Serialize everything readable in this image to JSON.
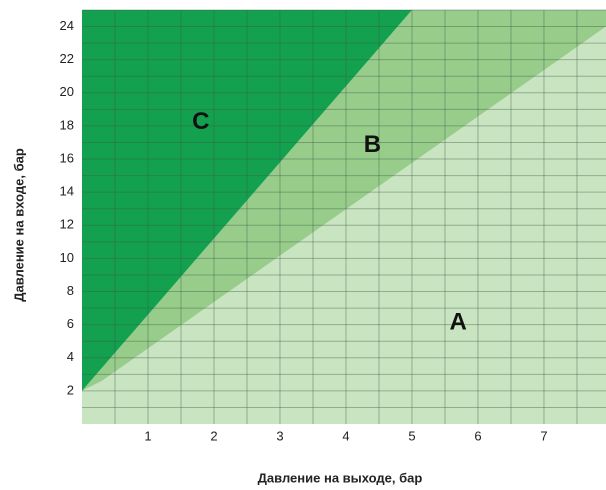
{
  "chart_data": {
    "type": "region",
    "x_label": "Давление на выходе, бар",
    "y_label": "Давление на входе, бар",
    "xlim": [
      0,
      7.94
    ],
    "ylim": [
      0,
      25
    ],
    "xticks": [
      1,
      2,
      3,
      4,
      5,
      6,
      7
    ],
    "yticks": [
      2,
      4,
      6,
      8,
      10,
      12,
      14,
      16,
      18,
      20,
      22,
      24
    ],
    "minor_xticks": [
      0.5,
      1.5,
      2.5,
      3.5,
      4.5,
      5.5,
      6.5,
      7.5
    ],
    "minor_yticks": [
      1,
      3,
      5,
      7,
      9,
      11,
      13,
      15,
      17,
      19,
      21,
      23,
      25
    ],
    "grid": true,
    "series": [
      {
        "name": "A",
        "color": "#c9e4c1",
        "x": [
          0,
          7.94,
          7.94,
          0.3,
          0
        ],
        "values": [
          0,
          0,
          24,
          2.6,
          2
        ],
        "label_at": [
          5.7,
          6.1
        ]
      },
      {
        "name": "B",
        "color": "#97cc8b",
        "x": [
          0,
          0.3,
          7.94,
          7.94,
          5
        ],
        "values": [
          2,
          2.6,
          24,
          25,
          25
        ],
        "label_at": [
          4.4,
          16.8
        ]
      },
      {
        "name": "C",
        "color": "#13a14f",
        "x": [
          0,
          5,
          0
        ],
        "values": [
          2,
          25,
          25
        ],
        "label_at": [
          1.8,
          18.2
        ]
      }
    ]
  }
}
